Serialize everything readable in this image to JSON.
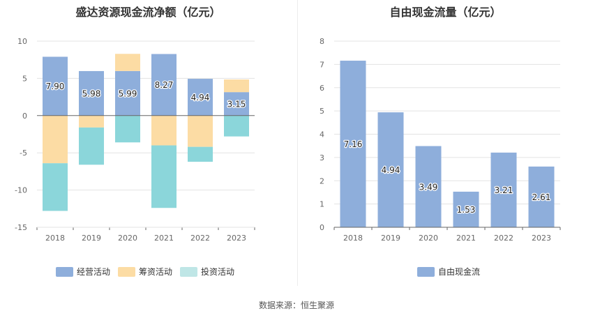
{
  "source": "数据来源：恒生聚源",
  "colors": {
    "operating": "#8eaedb",
    "financing": "#fcdca4",
    "investing": "#8bd6da",
    "investing_legend": "#bfe6e6",
    "free_cash_flow": "#8eaedb"
  },
  "chart_data": [
    {
      "type": "bar",
      "stacked": true,
      "title": "盛达资源现金流净额（亿元）",
      "categories": [
        "2018",
        "2019",
        "2020",
        "2021",
        "2022",
        "2023"
      ],
      "ylim": [
        -15,
        10
      ],
      "yticks": [
        10,
        5,
        0,
        -5,
        -10,
        -15
      ],
      "grid": true,
      "legend_position": "bottom",
      "series": [
        {
          "name": "经营活动",
          "color_key": "operating",
          "values": [
            7.9,
            5.98,
            5.99,
            8.27,
            4.94,
            3.15
          ],
          "labels": [
            "7.90",
            "5.98",
            "5.99",
            "8.27",
            "4.94",
            "3.15"
          ]
        },
        {
          "name": "筹资活动",
          "color_key": "financing",
          "values": [
            -6.4,
            -1.6,
            2.3,
            -4.0,
            -4.2,
            1.7
          ]
        },
        {
          "name": "投资活动",
          "color_key": "investing",
          "values": [
            -6.4,
            -5.0,
            -3.6,
            -8.4,
            -2.0,
            -2.8
          ]
        }
      ]
    },
    {
      "type": "bar",
      "title": "自由现金流量（亿元）",
      "categories": [
        "2018",
        "2019",
        "2020",
        "2021",
        "2022",
        "2023"
      ],
      "ylim": [
        0,
        8
      ],
      "yticks": [
        8,
        7,
        6,
        5,
        4,
        3,
        2,
        1,
        0
      ],
      "grid": true,
      "legend_position": "bottom",
      "series": [
        {
          "name": "自由现金流",
          "color_key": "free_cash_flow",
          "values": [
            7.16,
            4.94,
            3.49,
            1.53,
            3.21,
            2.61
          ],
          "labels": [
            "7.16",
            "4.94",
            "3.49",
            "1.53",
            "3.21",
            "2.61"
          ]
        }
      ]
    }
  ]
}
